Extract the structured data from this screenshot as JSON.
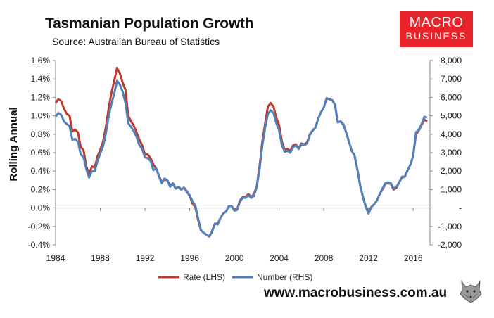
{
  "title": "Tasmanian Population Growth",
  "subtitle": "Source: Australian Bureau of Statistics",
  "logo": {
    "line1": "MACRO",
    "line2": "BUSINESS"
  },
  "footer": "www.macrobusiness.com.au",
  "chart_data": {
    "type": "line",
    "ylabel": "Rolling Annual",
    "xlim": [
      1984,
      2017.5
    ],
    "ylim_left": [
      -0.004,
      0.016
    ],
    "ylim_right": [
      -2000,
      8000
    ],
    "x_ticks": [
      1984,
      1988,
      1992,
      1996,
      2000,
      2004,
      2008,
      2012,
      2016
    ],
    "left_ticks": [
      {
        "v": -0.004,
        "label": "-0.4%"
      },
      {
        "v": -0.002,
        "label": "-0.2%"
      },
      {
        "v": 0.0,
        "label": "0.0%"
      },
      {
        "v": 0.002,
        "label": "0.2%"
      },
      {
        "v": 0.004,
        "label": "0.4%"
      },
      {
        "v": 0.006,
        "label": "0.6%"
      },
      {
        "v": 0.008,
        "label": "0.8%"
      },
      {
        "v": 0.01,
        "label": "1.0%"
      },
      {
        "v": 0.012,
        "label": "1.2%"
      },
      {
        "v": 0.014,
        "label": "1.4%"
      },
      {
        "v": 0.016,
        "label": "1.6%"
      }
    ],
    "right_ticks": [
      {
        "v": -2000,
        "label": "-2,000"
      },
      {
        "v": -1000,
        "label": "-1,000"
      },
      {
        "v": 0,
        "label": "-"
      },
      {
        "v": 1000,
        "label": "1,000"
      },
      {
        "v": 2000,
        "label": "2,000"
      },
      {
        "v": 3000,
        "label": "3,000"
      },
      {
        "v": 4000,
        "label": "4,000"
      },
      {
        "v": 5000,
        "label": "5,000"
      },
      {
        "v": 6000,
        "label": "6,000"
      },
      {
        "v": 7000,
        "label": "7,000"
      },
      {
        "v": 8000,
        "label": "8,000"
      }
    ],
    "grid": false,
    "legend_position": "bottom",
    "series": [
      {
        "name": "Rate (LHS)",
        "axis": "left",
        "color": "#c0392b",
        "points": [
          [
            1984.0,
            0.0114
          ],
          [
            1984.25,
            0.0118
          ],
          [
            1984.5,
            0.0116
          ],
          [
            1984.75,
            0.0108
          ],
          [
            1985.0,
            0.0102
          ],
          [
            1985.25,
            0.01
          ],
          [
            1985.5,
            0.0083
          ],
          [
            1985.75,
            0.0085
          ],
          [
            1986.0,
            0.0082
          ],
          [
            1986.25,
            0.0066
          ],
          [
            1986.5,
            0.0063
          ],
          [
            1986.75,
            0.0045
          ],
          [
            1987.0,
            0.0037
          ],
          [
            1987.25,
            0.0045
          ],
          [
            1987.5,
            0.0044
          ],
          [
            1987.75,
            0.0056
          ],
          [
            1988.0,
            0.0063
          ],
          [
            1988.25,
            0.0072
          ],
          [
            1988.5,
            0.0088
          ],
          [
            1988.75,
            0.0108
          ],
          [
            1989.0,
            0.0125
          ],
          [
            1989.25,
            0.0138
          ],
          [
            1989.5,
            0.0152
          ],
          [
            1989.75,
            0.0146
          ],
          [
            1990.0,
            0.0136
          ],
          [
            1990.25,
            0.0128
          ],
          [
            1990.5,
            0.01
          ],
          [
            1990.75,
            0.0094
          ],
          [
            1991.0,
            0.0089
          ],
          [
            1991.25,
            0.0082
          ],
          [
            1991.5,
            0.0074
          ],
          [
            1991.75,
            0.0068
          ],
          [
            1992.0,
            0.0058
          ],
          [
            1992.25,
            0.0058
          ],
          [
            1992.5,
            0.0054
          ],
          [
            1992.75,
            0.0047
          ],
          [
            1993.0,
            0.0043
          ],
          [
            1993.25,
            0.0035
          ],
          [
            1993.5,
            0.0028
          ],
          [
            1993.75,
            0.0031
          ],
          [
            1994.0,
            0.003
          ],
          [
            1994.25,
            0.0025
          ],
          [
            1994.5,
            0.0026
          ],
          [
            1994.75,
            0.0021
          ],
          [
            1995.0,
            0.0023
          ],
          [
            1995.25,
            0.002
          ],
          [
            1995.5,
            0.0022
          ],
          [
            1995.75,
            0.0018
          ],
          [
            1996.0,
            0.0013
          ],
          [
            1996.25,
            0.0005
          ],
          [
            1996.5,
            0.0001
          ],
          [
            1996.75,
            -0.0013
          ],
          [
            1997.0,
            -0.0024
          ],
          [
            1997.25,
            -0.0027
          ],
          [
            1997.5,
            -0.0029
          ],
          [
            1997.75,
            -0.0031
          ],
          [
            1998.0,
            -0.0025
          ],
          [
            1998.25,
            -0.0017
          ],
          [
            1998.5,
            -0.0017
          ],
          [
            1998.75,
            -0.0011
          ],
          [
            1999.0,
            -0.0006
          ],
          [
            1999.25,
            -0.0004
          ],
          [
            1999.5,
            0.0002
          ],
          [
            1999.75,
            0.0002
          ],
          [
            2000.0,
            -0.0002
          ],
          [
            2000.25,
            -0.0001
          ],
          [
            2000.5,
            0.0008
          ],
          [
            2000.75,
            0.0012
          ],
          [
            2001.0,
            0.0012
          ],
          [
            2001.25,
            0.0015
          ],
          [
            2001.5,
            0.0012
          ],
          [
            2001.75,
            0.0015
          ],
          [
            2002.0,
            0.0024
          ],
          [
            2002.25,
            0.0045
          ],
          [
            2002.5,
            0.0072
          ],
          [
            2002.75,
            0.0092
          ],
          [
            2003.0,
            0.011
          ],
          [
            2003.25,
            0.0114
          ],
          [
            2003.5,
            0.011
          ],
          [
            2003.75,
            0.0098
          ],
          [
            2004.0,
            0.009
          ],
          [
            2004.25,
            0.0072
          ],
          [
            2004.5,
            0.0063
          ],
          [
            2004.75,
            0.0064
          ],
          [
            2005.0,
            0.0062
          ],
          [
            2005.25,
            0.0068
          ],
          [
            2005.5,
            0.0069
          ],
          [
            2005.75,
            0.0065
          ],
          [
            2006.0,
            0.007
          ],
          [
            2006.25,
            0.0069
          ],
          [
            2006.5,
            0.0071
          ],
          [
            2006.75,
            0.008
          ],
          [
            2007.0,
            0.0084
          ],
          [
            2007.25,
            0.0087
          ],
          [
            2007.5,
            0.0097
          ],
          [
            2007.75,
            0.0104
          ],
          [
            2008.0,
            0.0109
          ],
          [
            2008.25,
            0.0119
          ],
          [
            2008.5,
            0.0118
          ],
          [
            2008.75,
            0.0117
          ],
          [
            2009.0,
            0.0112
          ],
          [
            2009.25,
            0.0093
          ],
          [
            2009.5,
            0.0094
          ],
          [
            2009.75,
            0.0091
          ],
          [
            2010.0,
            0.0082
          ],
          [
            2010.25,
            0.0072
          ],
          [
            2010.5,
            0.0062
          ],
          [
            2010.75,
            0.0057
          ],
          [
            2011.0,
            0.0042
          ],
          [
            2011.25,
            0.0025
          ],
          [
            2011.5,
            0.0012
          ],
          [
            2011.75,
            0.0002
          ],
          [
            2012.0,
            -0.0005
          ],
          [
            2012.25,
            0.0001
          ],
          [
            2012.5,
            0.0004
          ],
          [
            2012.75,
            0.0008
          ],
          [
            2013.0,
            0.0015
          ],
          [
            2013.25,
            0.002
          ],
          [
            2013.5,
            0.0026
          ],
          [
            2013.75,
            0.0027
          ],
          [
            2014.0,
            0.0026
          ],
          [
            2014.25,
            0.002
          ],
          [
            2014.5,
            0.0022
          ],
          [
            2014.75,
            0.0028
          ],
          [
            2015.0,
            0.0033
          ],
          [
            2015.25,
            0.0034
          ],
          [
            2015.5,
            0.0041
          ],
          [
            2015.75,
            0.0047
          ],
          [
            2016.0,
            0.0057
          ],
          [
            2016.25,
            0.008
          ],
          [
            2016.5,
            0.0084
          ],
          [
            2016.75,
            0.009
          ],
          [
            2017.0,
            0.0096
          ],
          [
            2017.25,
            0.0094
          ]
        ]
      },
      {
        "name": "Number (RHS)",
        "axis": "right",
        "color": "#4f81bd",
        "points": [
          [
            1984.0,
            4950
          ],
          [
            1984.25,
            5150
          ],
          [
            1984.5,
            5050
          ],
          [
            1984.75,
            4700
          ],
          [
            1985.0,
            4550
          ],
          [
            1985.25,
            4450
          ],
          [
            1985.5,
            3700
          ],
          [
            1985.75,
            3750
          ],
          [
            1986.0,
            3600
          ],
          [
            1986.25,
            2900
          ],
          [
            1986.5,
            2750
          ],
          [
            1986.75,
            2100
          ],
          [
            1987.0,
            1650
          ],
          [
            1987.25,
            2000
          ],
          [
            1987.5,
            2000
          ],
          [
            1987.75,
            2550
          ],
          [
            1988.0,
            2950
          ],
          [
            1988.25,
            3350
          ],
          [
            1988.5,
            4050
          ],
          [
            1988.75,
            4950
          ],
          [
            1989.0,
            5650
          ],
          [
            1989.25,
            6200
          ],
          [
            1989.5,
            6900
          ],
          [
            1989.75,
            6700
          ],
          [
            1990.0,
            6300
          ],
          [
            1990.25,
            5700
          ],
          [
            1990.5,
            4600
          ],
          [
            1990.75,
            4400
          ],
          [
            1991.0,
            4150
          ],
          [
            1991.25,
            3850
          ],
          [
            1991.5,
            3400
          ],
          [
            1991.75,
            3200
          ],
          [
            1992.0,
            2750
          ],
          [
            1992.25,
            2700
          ],
          [
            1992.5,
            2550
          ],
          [
            1992.75,
            2050
          ],
          [
            1993.0,
            2150
          ],
          [
            1993.25,
            1700
          ],
          [
            1993.5,
            1350
          ],
          [
            1993.75,
            1600
          ],
          [
            1994.0,
            1500
          ],
          [
            1994.25,
            1150
          ],
          [
            1994.5,
            1350
          ],
          [
            1994.75,
            1050
          ],
          [
            1995.0,
            1150
          ],
          [
            1995.25,
            1000
          ],
          [
            1995.5,
            1100
          ],
          [
            1995.75,
            850
          ],
          [
            1996.0,
            700
          ],
          [
            1996.25,
            350
          ],
          [
            1996.5,
            150
          ],
          [
            1996.75,
            -550
          ],
          [
            1997.0,
            -1200
          ],
          [
            1997.25,
            -1350
          ],
          [
            1997.5,
            -1450
          ],
          [
            1997.75,
            -1550
          ],
          [
            1998.0,
            -1300
          ],
          [
            1998.25,
            -850
          ],
          [
            1998.5,
            -900
          ],
          [
            1998.75,
            -550
          ],
          [
            1999.0,
            -300
          ],
          [
            1999.25,
            -200
          ],
          [
            1999.5,
            100
          ],
          [
            1999.75,
            100
          ],
          [
            2000.0,
            -150
          ],
          [
            2000.25,
            -100
          ],
          [
            2000.5,
            350
          ],
          [
            2000.75,
            550
          ],
          [
            2001.0,
            550
          ],
          [
            2001.25,
            700
          ],
          [
            2001.5,
            550
          ],
          [
            2001.75,
            650
          ],
          [
            2002.0,
            1150
          ],
          [
            2002.25,
            2100
          ],
          [
            2002.5,
            3400
          ],
          [
            2002.75,
            4350
          ],
          [
            2003.0,
            5100
          ],
          [
            2003.25,
            5300
          ],
          [
            2003.5,
            5150
          ],
          [
            2003.75,
            4600
          ],
          [
            2004.0,
            4200
          ],
          [
            2004.25,
            3400
          ],
          [
            2004.5,
            3050
          ],
          [
            2004.75,
            3100
          ],
          [
            2005.0,
            3000
          ],
          [
            2005.25,
            3300
          ],
          [
            2005.5,
            3400
          ],
          [
            2005.75,
            3200
          ],
          [
            2006.0,
            3450
          ],
          [
            2006.25,
            3400
          ],
          [
            2006.5,
            3500
          ],
          [
            2006.75,
            3950
          ],
          [
            2007.0,
            4200
          ],
          [
            2007.25,
            4350
          ],
          [
            2007.5,
            4850
          ],
          [
            2007.75,
            5200
          ],
          [
            2008.0,
            5450
          ],
          [
            2008.25,
            5950
          ],
          [
            2008.5,
            5900
          ],
          [
            2008.75,
            5850
          ],
          [
            2009.0,
            5600
          ],
          [
            2009.25,
            4650
          ],
          [
            2009.5,
            4700
          ],
          [
            2009.75,
            4500
          ],
          [
            2010.0,
            4100
          ],
          [
            2010.25,
            3600
          ],
          [
            2010.5,
            3100
          ],
          [
            2010.75,
            2850
          ],
          [
            2011.0,
            2100
          ],
          [
            2011.25,
            1250
          ],
          [
            2011.5,
            600
          ],
          [
            2011.75,
            50
          ],
          [
            2012.0,
            -300
          ],
          [
            2012.25,
            50
          ],
          [
            2012.5,
            200
          ],
          [
            2012.75,
            400
          ],
          [
            2013.0,
            750
          ],
          [
            2013.25,
            1050
          ],
          [
            2013.5,
            1350
          ],
          [
            2013.75,
            1400
          ],
          [
            2014.0,
            1350
          ],
          [
            2014.25,
            1050
          ],
          [
            2014.5,
            1150
          ],
          [
            2014.75,
            1400
          ],
          [
            2015.0,
            1700
          ],
          [
            2015.25,
            1700
          ],
          [
            2015.5,
            2050
          ],
          [
            2015.75,
            2350
          ],
          [
            2016.0,
            2850
          ],
          [
            2016.25,
            4100
          ],
          [
            2016.5,
            4250
          ],
          [
            2016.75,
            4550
          ],
          [
            2017.0,
            4950
          ],
          [
            2017.25,
            4900
          ]
        ]
      }
    ]
  }
}
